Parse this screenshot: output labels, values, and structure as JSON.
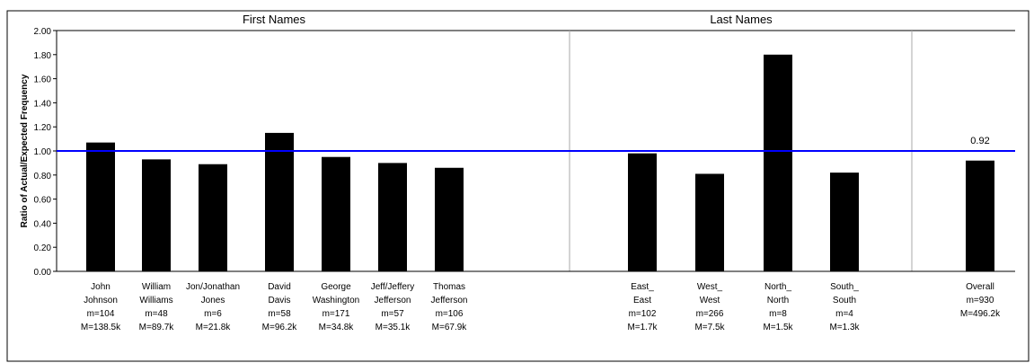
{
  "chart_data": {
    "type": "bar",
    "y_title": "Ratio of Actual/Expected Frequency",
    "groups": [
      "First Names",
      "Last Names"
    ],
    "categories": [
      [
        "John",
        "Johnson",
        "m=104",
        "M=138.5k"
      ],
      [
        "William",
        "Williams",
        "m=48",
        "M=89.7k"
      ],
      [
        "Jon/Jonathan",
        "Jones",
        "m=6",
        "M=21.8k"
      ],
      [
        "David",
        "Davis",
        "m=58",
        "M=96.2k"
      ],
      [
        "George",
        "Washington",
        "m=171",
        "M=34.8k"
      ],
      [
        "Jeff/Jeffery",
        "Jefferson",
        "m=57",
        "M=35.1k"
      ],
      [
        "Thomas",
        "Jefferson",
        "m=106",
        "M=67.9k"
      ],
      [
        "East_",
        "East",
        "m=102",
        "M=1.7k"
      ],
      [
        "West_",
        "West",
        "m=266",
        "M=7.5k"
      ],
      [
        "North_",
        "North",
        "m=8",
        "M=1.5k"
      ],
      [
        "South_",
        "South",
        "m=4",
        "M=1.3k"
      ],
      [
        "Overall",
        "m=930",
        "M=496.2k"
      ]
    ],
    "values": [
      1.07,
      0.93,
      0.89,
      1.15,
      0.95,
      0.9,
      0.86,
      0.98,
      0.81,
      1.8,
      0.82,
      0.92
    ],
    "labeled_value_index": 11,
    "color": "#000000",
    "reference_line": {
      "value": 1,
      "color": "#0000ff"
    },
    "ylim": [
      0,
      2
    ],
    "yticks": [
      {
        "value": 0,
        "label": "0.00"
      },
      {
        "value": 0.2,
        "label": "0.20"
      },
      {
        "value": 0.4,
        "label": "0.40"
      },
      {
        "value": 0.6,
        "label": "0.60"
      },
      {
        "value": 0.8,
        "label": "0.80"
      },
      {
        "value": 1,
        "label": "1.00"
      },
      {
        "value": 1.2,
        "label": "1.20"
      },
      {
        "value": 1.4,
        "label": "1.40"
      },
      {
        "value": 1.6,
        "label": "1.60"
      },
      {
        "value": 1.8,
        "label": "1.80"
      },
      {
        "value": 2,
        "label": "2.00"
      }
    ]
  }
}
